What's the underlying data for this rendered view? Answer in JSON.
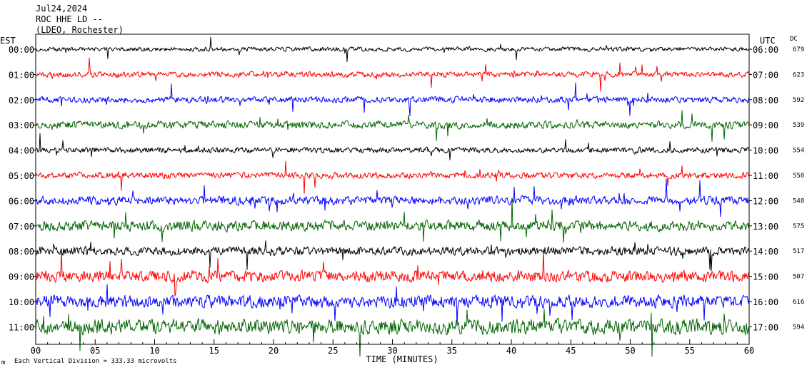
{
  "header": {
    "date": "Jul24,2024",
    "station": "ROC HHE LD --",
    "network": "(LDEO, Rochester)"
  },
  "chart_data": {
    "type": "line",
    "chart_kind": "helicorder",
    "left_axis_label": "EST",
    "right_axis_label": "UTC",
    "dc_label": "DC",
    "xlabel": "TIME (MINUTES)",
    "xlim": [
      0,
      60
    ],
    "x_ticks": [
      "00",
      "05",
      "10",
      "15",
      "20",
      "25",
      "30",
      "35",
      "40",
      "45",
      "50",
      "55",
      "60"
    ],
    "footer_note": "Each Vertical Division = 333.33 microvolts",
    "footer_mark": "m",
    "colors": [
      "#000000",
      "#ff0000",
      "#0000ff",
      "#006400"
    ],
    "rows": [
      {
        "est": "00:00",
        "utc": "06:00",
        "dc": "679",
        "color": "#000000",
        "amplitude": 0.35
      },
      {
        "est": "01:00",
        "utc": "07:00",
        "dc": "623",
        "color": "#ff0000",
        "amplitude": 0.45
      },
      {
        "est": "02:00",
        "utc": "08:00",
        "dc": "592",
        "color": "#0000ff",
        "amplitude": 0.5
      },
      {
        "est": "03:00",
        "utc": "09:00",
        "dc": "539",
        "color": "#006400",
        "amplitude": 0.6
      },
      {
        "est": "04:00",
        "utc": "10:00",
        "dc": "554",
        "color": "#000000",
        "amplitude": 0.45
      },
      {
        "est": "05:00",
        "utc": "11:00",
        "dc": "550",
        "color": "#ff0000",
        "amplitude": 0.5
      },
      {
        "est": "06:00",
        "utc": "12:00",
        "dc": "548",
        "color": "#0000ff",
        "amplitude": 0.7
      },
      {
        "est": "07:00",
        "utc": "13:00",
        "dc": "575",
        "color": "#006400",
        "amplitude": 0.85
      },
      {
        "est": "08:00",
        "utc": "14:00",
        "dc": "517",
        "color": "#000000",
        "amplitude": 0.7
      },
      {
        "est": "09:00",
        "utc": "15:00",
        "dc": "507",
        "color": "#ff0000",
        "amplitude": 0.9
      },
      {
        "est": "10:00",
        "utc": "16:00",
        "dc": "616",
        "color": "#0000ff",
        "amplitude": 1.0
      },
      {
        "est": "11:00",
        "utc": "17:00",
        "dc": "594",
        "color": "#006400",
        "amplitude": 1.2
      }
    ]
  }
}
